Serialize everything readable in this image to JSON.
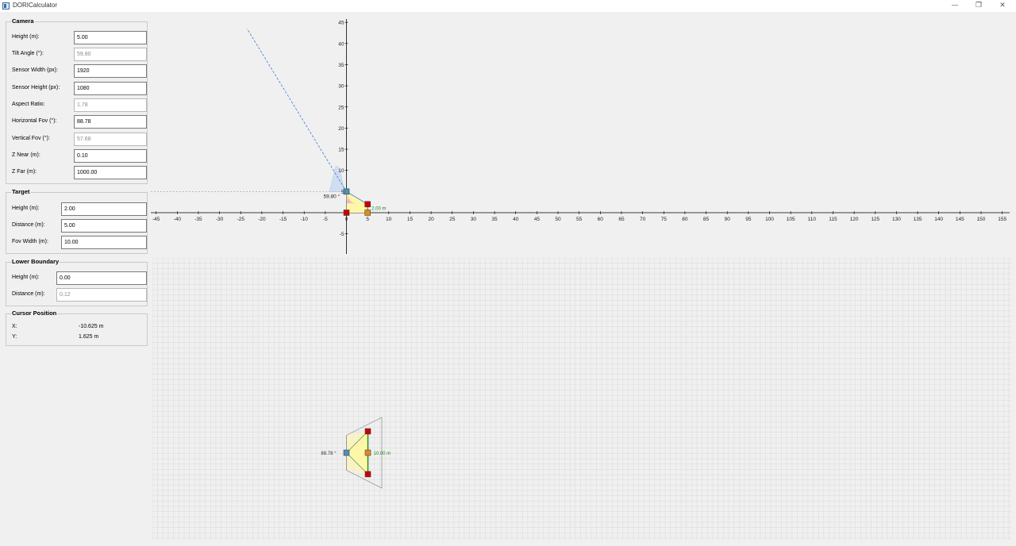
{
  "window": {
    "title": "DORICalculator",
    "minimize": "—",
    "maximize": "❐",
    "close": "✕"
  },
  "camera": {
    "title": "Camera",
    "fields": [
      {
        "label": "Height (m):",
        "value": "5.00",
        "readonly": false
      },
      {
        "label": "Tilt Angle (°):",
        "value": "59.80",
        "readonly": true
      },
      {
        "label": "Sensor Width (px):",
        "value": "1920",
        "readonly": false
      },
      {
        "label": "Sensor Height (px):",
        "value": "1080",
        "readonly": false
      },
      {
        "label": "Aspect Ratio:",
        "value": "1.78",
        "readonly": true
      },
      {
        "label": "Horizontal Fov (°):",
        "value": "88.78",
        "readonly": false
      },
      {
        "label": "Vertical Fov (°):",
        "value": "57.68",
        "readonly": true
      },
      {
        "label": "Z Near (m):",
        "value": "0.10",
        "readonly": false
      },
      {
        "label": "Z Far (m):",
        "value": "1000.00",
        "readonly": false
      }
    ]
  },
  "target": {
    "title": "Target",
    "fields": [
      {
        "label": "Height (m):",
        "value": "2.00",
        "readonly": false
      },
      {
        "label": "Distance (m):",
        "value": "5.00",
        "readonly": false
      },
      {
        "label": "Fov Width (m):",
        "value": "10.00",
        "readonly": false
      }
    ]
  },
  "lower_boundary": {
    "title": "Lower Boundary",
    "fields": [
      {
        "label": "Height (m):",
        "value": "0.00",
        "readonly": false
      },
      {
        "label": "Distance (m):",
        "value": "0.12",
        "readonly": true
      }
    ]
  },
  "cursor": {
    "title": "Cursor Position",
    "x_label": "X:",
    "x_value": "-10.625 m",
    "y_label": "Y:",
    "y_value": "1.625 m"
  },
  "side_view": {
    "x_ticks": [
      "-45",
      "-40",
      "-35",
      "-30",
      "-25",
      "-20",
      "-15",
      "-10",
      "-5",
      "0",
      "5",
      "10",
      "15",
      "20",
      "25",
      "30",
      "35",
      "40",
      "45",
      "50",
      "55",
      "60",
      "65",
      "70",
      "75",
      "80",
      "85",
      "90",
      "95",
      "100",
      "105",
      "110",
      "115",
      "120",
      "125",
      "130",
      "135",
      "140",
      "145",
      "150",
      "155"
    ],
    "y_ticks": [
      "45",
      "40",
      "35",
      "30",
      "25",
      "20",
      "15",
      "10",
      "5",
      "-5"
    ],
    "tilt_label": "59.80 °",
    "height_label": "2.00 m",
    "camera_height": 5.0,
    "target_height": 2.0,
    "target_distance": 5.0,
    "colors": {
      "fov_line": "#3a78d6",
      "target": "#cc0000",
      "camera": "#4a90b8",
      "fill": "#fff7a8"
    }
  },
  "top_view": {
    "fov_angle_label": "88.78 °",
    "width_label": "10.00 m",
    "colors": {
      "label": "#1e8a1e",
      "target": "#cc0000",
      "camera": "#4a90b8",
      "mid": "#e08a1e"
    }
  }
}
